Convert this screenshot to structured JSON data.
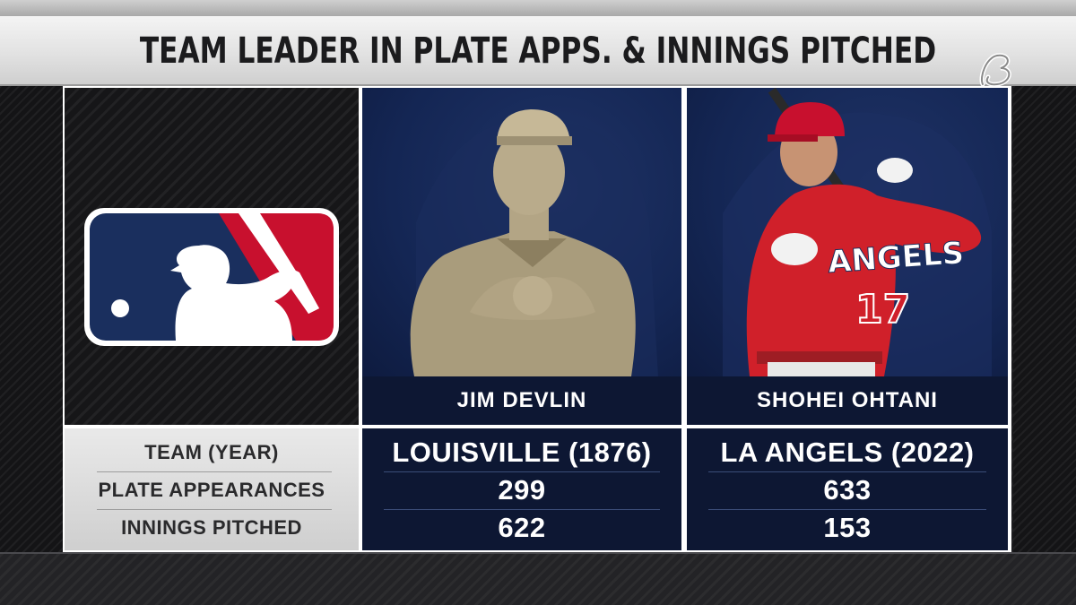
{
  "header": {
    "title": "TEAM LEADER IN PLATE APPS. & INNINGS PITCHED",
    "brand_logo": "script-b-logo"
  },
  "league_logo": "mlb-logo",
  "players": [
    {
      "name": "JIM DEVLIN",
      "photo": "vintage-sepia-player-photo",
      "stats": {
        "team_year": "LOUISVILLE (1876)",
        "plate_appearances": "299",
        "innings_pitched": "622"
      }
    },
    {
      "name": "SHOHEI OHTANI",
      "photo": "angels-batter-photo",
      "stats": {
        "team_year": "LA ANGELS (2022)",
        "plate_appearances": "633",
        "innings_pitched": "153"
      }
    }
  ],
  "stat_labels": {
    "team_year": "TEAM (YEAR)",
    "plate_appearances": "PLATE APPEARANCES",
    "innings_pitched": "INNINGS PITCHED"
  },
  "colors": {
    "navy": "#0d1733",
    "mlb_blue": "#1a2f5e",
    "mlb_red": "#c8102e",
    "angels_red": "#d0202a"
  }
}
